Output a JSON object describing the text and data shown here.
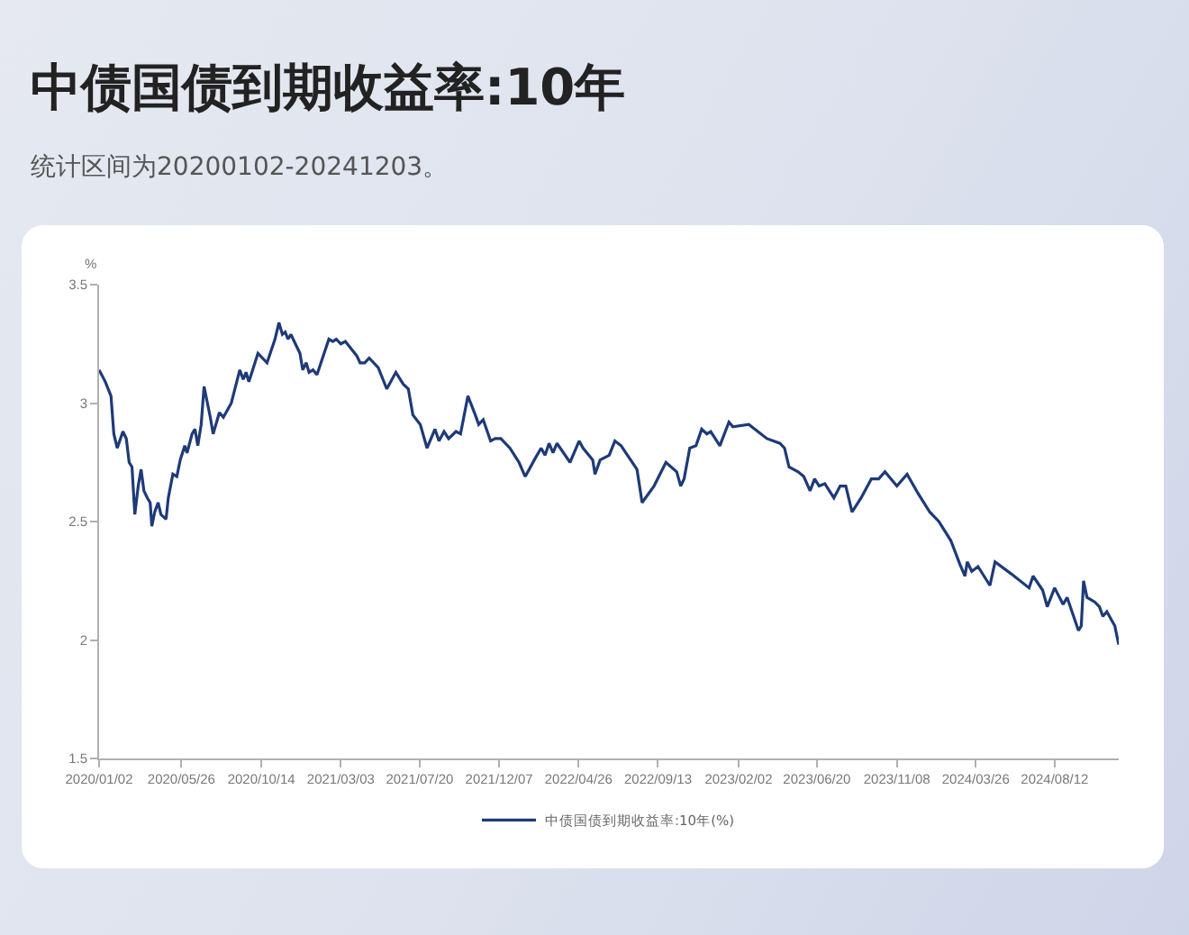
{
  "chart_data": {
    "type": "line",
    "title": "中债国债到期收益率:10年",
    "subtitle": "统计区间为20200102-20241203。",
    "ylabel": "%",
    "x": [
      "2020-01-02",
      "2020-01-13",
      "2020-01-23",
      "2020-01-28",
      "2020-02-03",
      "2020-02-13",
      "2020-02-19",
      "2020-02-24",
      "2020-02-29",
      "2020-03-05",
      "2020-03-11",
      "2020-03-16",
      "2020-03-21",
      "2020-03-27",
      "2020-04-01",
      "2020-04-04",
      "2020-04-09",
      "2020-04-15",
      "2020-04-20",
      "2020-04-29",
      "2020-05-03",
      "2020-05-11",
      "2020-05-18",
      "2020-05-24",
      "2020-06-01",
      "2020-06-05",
      "2020-06-14",
      "2020-06-19",
      "2020-06-24",
      "2020-06-30",
      "2020-07-05",
      "2020-07-16",
      "2020-07-21",
      "2020-08-01",
      "2020-08-08",
      "2020-08-22",
      "2020-09-06",
      "2020-09-12",
      "2020-09-17",
      "2020-09-22",
      "2020-10-08",
      "2020-10-24",
      "2020-11-07",
      "2020-11-14",
      "2020-11-20",
      "2020-11-25",
      "2020-11-30",
      "2020-12-05",
      "2020-12-21",
      "2020-12-26",
      "2021-01-01",
      "2021-01-06",
      "2021-01-13",
      "2021-01-20",
      "2021-02-10",
      "2021-02-17",
      "2021-02-23",
      "2021-03-03",
      "2021-03-11",
      "2021-03-31",
      "2021-04-06",
      "2021-04-14",
      "2021-04-22",
      "2021-05-08",
      "2021-05-23",
      "2021-06-08",
      "2021-06-21",
      "2021-06-30",
      "2021-07-08",
      "2021-07-21",
      "2021-08-02",
      "2021-08-16",
      "2021-08-23",
      "2021-09-01",
      "2021-09-09",
      "2021-09-22",
      "2021-09-30",
      "2021-10-13",
      "2021-10-26",
      "2021-11-01",
      "2021-11-09",
      "2021-11-22",
      "2021-11-30",
      "2021-12-10",
      "2021-12-26",
      "2022-01-11",
      "2022-01-22",
      "2022-01-29",
      "2022-02-07",
      "2022-02-19",
      "2022-02-26",
      "2022-03-05",
      "2022-03-12",
      "2022-03-19",
      "2022-04-11",
      "2022-04-27",
      "2022-05-04",
      "2022-05-21",
      "2022-05-25",
      "2022-06-03",
      "2022-06-19",
      "2022-06-29",
      "2022-07-10",
      "2022-08-07",
      "2022-08-16",
      "2022-09-06",
      "2022-09-27",
      "2022-10-16",
      "2022-10-23",
      "2022-10-29",
      "2022-11-08",
      "2022-11-19",
      "2022-11-29",
      "2022-12-08",
      "2022-12-15",
      "2022-12-31",
      "2023-01-16",
      "2023-01-23",
      "2023-02-20",
      "2023-03-24",
      "2023-04-16",
      "2023-04-24",
      "2023-05-02",
      "2023-05-18",
      "2023-05-28",
      "2023-06-08",
      "2023-06-16",
      "2023-06-24",
      "2023-07-04",
      "2023-07-20",
      "2023-07-31",
      "2023-08-10",
      "2023-08-21",
      "2023-09-06",
      "2023-09-24",
      "2023-10-07",
      "2023-10-18",
      "2023-11-08",
      "2023-11-26",
      "2023-12-15",
      "2024-01-05",
      "2024-01-21",
      "2024-02-11",
      "2024-02-27",
      "2024-03-07",
      "2024-03-11",
      "2024-03-19",
      "2024-03-30",
      "2024-04-20",
      "2024-04-29",
      "2024-05-27",
      "2024-06-28",
      "2024-07-05",
      "2024-07-22",
      "2024-07-30",
      "2024-08-12",
      "2024-08-27",
      "2024-09-03",
      "2024-09-23",
      "2024-09-28",
      "2024-10-02",
      "2024-10-08",
      "2024-10-22",
      "2024-10-30",
      "2024-11-05",
      "2024-11-12",
      "2024-11-26",
      "2024-12-03"
    ],
    "series": [
      {
        "name": "中债国债到期收益率:10年(%)",
        "color": "#1e3a78",
        "values": [
          3.14,
          3.09,
          3.03,
          2.87,
          2.81,
          2.88,
          2.85,
          2.75,
          2.73,
          2.53,
          2.65,
          2.72,
          2.63,
          2.6,
          2.58,
          2.48,
          2.54,
          2.58,
          2.53,
          2.51,
          2.6,
          2.7,
          2.69,
          2.76,
          2.82,
          2.79,
          2.87,
          2.89,
          2.82,
          2.91,
          3.07,
          2.94,
          2.87,
          2.96,
          2.94,
          3.0,
          3.14,
          3.1,
          3.13,
          3.09,
          3.21,
          3.17,
          3.27,
          3.34,
          3.29,
          3.3,
          3.27,
          3.29,
          3.21,
          3.14,
          3.17,
          3.13,
          3.14,
          3.12,
          3.27,
          3.26,
          3.27,
          3.25,
          3.26,
          3.2,
          3.17,
          3.17,
          3.19,
          3.15,
          3.06,
          3.13,
          3.08,
          3.06,
          2.95,
          2.91,
          2.81,
          2.89,
          2.84,
          2.88,
          2.85,
          2.88,
          2.87,
          3.03,
          2.95,
          2.91,
          2.93,
          2.84,
          2.85,
          2.85,
          2.81,
          2.75,
          2.69,
          2.72,
          2.76,
          2.81,
          2.78,
          2.83,
          2.79,
          2.83,
          2.75,
          2.84,
          2.81,
          2.76,
          2.7,
          2.76,
          2.78,
          2.84,
          2.82,
          2.72,
          2.58,
          2.65,
          2.75,
          2.71,
          2.65,
          2.68,
          2.81,
          2.82,
          2.89,
          2.87,
          2.88,
          2.82,
          2.92,
          2.9,
          2.91,
          2.85,
          2.83,
          2.81,
          2.73,
          2.71,
          2.69,
          2.63,
          2.68,
          2.65,
          2.66,
          2.6,
          2.65,
          2.65,
          2.54,
          2.6,
          2.68,
          2.68,
          2.71,
          2.65,
          2.7,
          2.62,
          2.54,
          2.5,
          2.42,
          2.32,
          2.27,
          2.33,
          2.29,
          2.31,
          2.23,
          2.33,
          2.28,
          2.22,
          2.27,
          2.21,
          2.14,
          2.22,
          2.15,
          2.18,
          2.04,
          2.06,
          2.25,
          2.18,
          2.16,
          2.14,
          2.1,
          2.12,
          2.06,
          1.98
        ]
      }
    ],
    "xlim": [
      "2020-01-02",
      "2024-12-03"
    ],
    "xticks": [
      {
        "value": "2020-01-02",
        "label": "2020/01/02"
      },
      {
        "value": "2020-05-26",
        "label": "2020/05/26"
      },
      {
        "value": "2020-10-14",
        "label": "2020/10/14"
      },
      {
        "value": "2021-03-03",
        "label": "2021/03/03"
      },
      {
        "value": "2021-07-20",
        "label": "2021/07/20"
      },
      {
        "value": "2021-12-07",
        "label": "2021/12/07"
      },
      {
        "value": "2022-04-26",
        "label": "2022/04/26"
      },
      {
        "value": "2022-09-13",
        "label": "2022/09/13"
      },
      {
        "value": "2023-02-02",
        "label": "2023/02/02"
      },
      {
        "value": "2023-06-20",
        "label": "2023/06/20"
      },
      {
        "value": "2023-11-08",
        "label": "2023/11/08"
      },
      {
        "value": "2024-03-26",
        "label": "2024/03/26"
      },
      {
        "value": "2024-08-12",
        "label": "2024/08/12"
      }
    ],
    "ylim": [
      1.5,
      3.5
    ],
    "yticks": [
      1.5,
      2,
      2.5,
      3,
      3.5
    ],
    "grid": false,
    "legend": "bottom"
  }
}
